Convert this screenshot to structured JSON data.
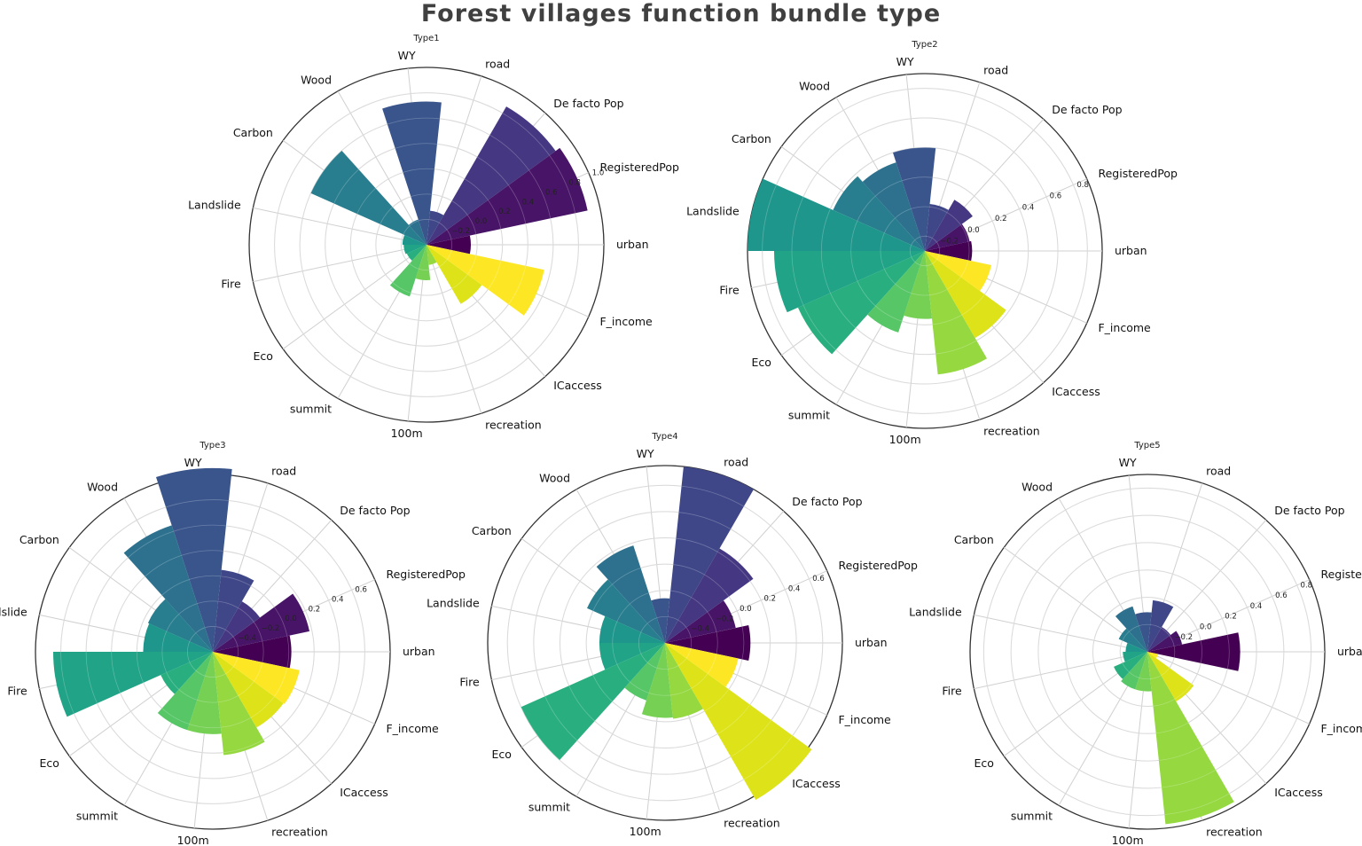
{
  "title": "Forest villages function bundle type",
  "chart_data": [
    {
      "type": "polar-bar",
      "title": "Type1",
      "categories": [
        "urban",
        "RegisteredPop",
        "De facto Pop",
        "road",
        "WY",
        "Wood",
        "Carbon",
        "Landslide",
        "Fire",
        "Eco",
        "summit",
        "100m",
        "recreation",
        "ICaccess",
        "F_income"
      ],
      "values": [
        -0.05,
        0.9,
        0.86,
        -0.13,
        0.73,
        -0.19,
        0.6,
        -0.21,
        -0.22,
        -0.23,
        0.03,
        -0.12,
        -0.24,
        0.14,
        0.55
      ],
      "rmin": -0.4,
      "rmax": 1.0,
      "rticks": [
        -0.2,
        0.0,
        0.2,
        0.4,
        0.6,
        0.8,
        1.0
      ],
      "rtick_labels": [
        "−0.2",
        "0.0",
        "0.2",
        "0.4",
        "0.6",
        "0.8",
        "1.0"
      ]
    },
    {
      "type": "polar-bar",
      "title": "Type2",
      "categories": [
        "urban",
        "RegisteredPop",
        "De facto Pop",
        "road",
        "WY",
        "Wood",
        "Carbon",
        "Landslide",
        "Fire",
        "Eco",
        "summit",
        "100m",
        "recreation",
        "ICaccess",
        "F_income"
      ],
      "values": [
        0.02,
        0.01,
        0.1,
        0.02,
        0.4,
        0.33,
        0.38,
        0.9,
        0.72,
        0.64,
        0.28,
        0.16,
        0.54,
        0.38,
        0.16
      ],
      "rmin": -0.3,
      "rmax": 0.9,
      "rticks": [
        -0.2,
        0.0,
        0.2,
        0.4,
        0.6,
        0.8
      ],
      "rtick_labels": [
        "−0.2",
        "0.0",
        "0.2",
        "0.4",
        "0.6",
        "0.8"
      ]
    },
    {
      "type": "polar-bar",
      "title": "Type3",
      "categories": [
        "urban",
        "RegisteredPop",
        "De facto Pop",
        "road",
        "WY",
        "Wood",
        "Carbon",
        "Landslide",
        "Fire",
        "Eco",
        "summit",
        "100m",
        "recreation",
        "ICaccess",
        "F_income"
      ],
      "values": [
        0.02,
        0.18,
        -0.14,
        0.05,
        0.85,
        0.45,
        -0.04,
        -0.05,
        0.66,
        -0.15,
        0.05,
        0.05,
        0.22,
        0.09,
        0.1
      ],
      "rmin": -0.6,
      "rmax": 0.8,
      "rticks": [
        -0.4,
        -0.2,
        0.0,
        0.2,
        0.4,
        0.6
      ],
      "rtick_labels": [
        "−0.4",
        "−0.2",
        "0.0",
        "0.2",
        "0.4",
        "0.6"
      ]
    },
    {
      "type": "polar-bar",
      "title": "Type4",
      "categories": [
        "urban",
        "RegisteredPop",
        "De facto Pop",
        "road",
        "WY",
        "Wood",
        "Carbon",
        "Landslide",
        "Fire",
        "Eco",
        "summit",
        "100m",
        "recreation",
        "ICaccess",
        "F_income"
      ],
      "values": [
        0.05,
        -0.05,
        0.23,
        0.75,
        -0.26,
        0.18,
        0.05,
        -0.1,
        -0.1,
        0.6,
        -0.14,
        -0.03,
        -0.02,
        0.78,
        -0.03
      ],
      "rmin": -0.6,
      "rmax": 0.75,
      "rticks": [
        -0.4,
        -0.2,
        0.0,
        0.2,
        0.4,
        0.6
      ],
      "rtick_labels": [
        "−0.4",
        "−0.2",
        "0.0",
        "0.2",
        "0.4",
        "0.6"
      ]
    },
    {
      "type": "polar-bar",
      "title": "Type5",
      "categories": [
        "urban",
        "RegisteredPop",
        "De facto Pop",
        "road",
        "WY",
        "Wood",
        "Carbon",
        "Landslide",
        "Fire",
        "Eco",
        "summit",
        "100m",
        "recreation",
        "ICaccess",
        "F_income"
      ],
      "values": [
        0.28,
        -0.14,
        -0.19,
        -0.02,
        -0.11,
        -0.05,
        -0.17,
        -0.24,
        -0.22,
        -0.13,
        -0.11,
        -0.11,
        0.87,
        0.02,
        -0.32
      ],
      "rmin": -0.4,
      "rmax": 0.9,
      "rticks": [
        -0.2,
        0.0,
        0.2,
        0.4,
        0.6,
        0.8
      ],
      "rtick_labels": [
        "−0.2",
        "0.0",
        "0.2",
        "0.4",
        "0.6",
        "0.8"
      ]
    }
  ]
}
